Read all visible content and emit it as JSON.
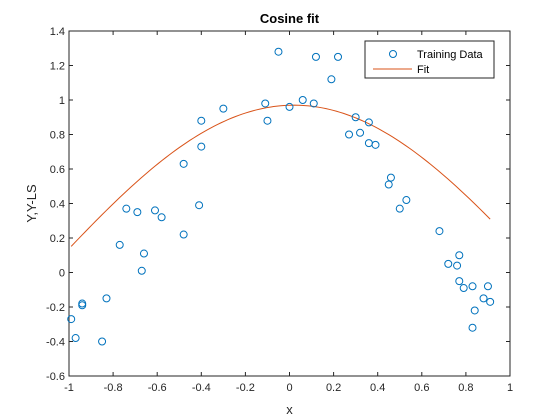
{
  "chart_data": {
    "type": "scatter",
    "title": "Cosine fit",
    "xlabel": "x",
    "ylabel": "Y,Y-LS",
    "xlim": [
      -1,
      1
    ],
    "ylim": [
      -0.6,
      1.4
    ],
    "xticks": [
      -1,
      -0.8,
      -0.6,
      -0.4,
      -0.2,
      0,
      0.2,
      0.4,
      0.6,
      0.8,
      1
    ],
    "xtick_labels": [
      "-1",
      "-0.8",
      "-0.6",
      "-0.4",
      "-0.2",
      "0",
      "0.2",
      "0.4",
      "0.6",
      "0.8",
      "1"
    ],
    "yticks": [
      -0.6,
      -0.4,
      -0.2,
      0,
      0.2,
      0.4,
      0.6,
      0.8,
      1,
      1.2,
      1.4
    ],
    "ytick_labels": [
      "-0.6",
      "-0.4",
      "-0.2",
      "0",
      "0.2",
      "0.4",
      "0.6",
      "0.8",
      "1",
      "1.2",
      "1.4"
    ],
    "grid": false,
    "legend_position": "top-right",
    "series": [
      {
        "name": "Training Data",
        "kind": "markers",
        "marker": "open-circle",
        "color": "#0072BD",
        "points": [
          [
            -0.99,
            -0.27
          ],
          [
            -0.97,
            -0.38
          ],
          [
            -0.94,
            -0.18
          ],
          [
            -0.94,
            -0.19
          ],
          [
            -0.85,
            -0.4
          ],
          [
            -0.83,
            -0.15
          ],
          [
            -0.77,
            0.16
          ],
          [
            -0.74,
            0.37
          ],
          [
            -0.69,
            0.35
          ],
          [
            -0.67,
            0.01
          ],
          [
            -0.66,
            0.11
          ],
          [
            -0.61,
            0.36
          ],
          [
            -0.58,
            0.32
          ],
          [
            -0.48,
            0.63
          ],
          [
            -0.48,
            0.22
          ],
          [
            -0.41,
            0.39
          ],
          [
            -0.4,
            0.73
          ],
          [
            -0.4,
            0.88
          ],
          [
            -0.3,
            0.95
          ],
          [
            -0.11,
            0.98
          ],
          [
            -0.1,
            0.88
          ],
          [
            -0.05,
            1.28
          ],
          [
            0.0,
            0.96
          ],
          [
            0.06,
            1.0
          ],
          [
            0.11,
            0.98
          ],
          [
            0.12,
            1.25
          ],
          [
            0.19,
            1.12
          ],
          [
            0.22,
            1.25
          ],
          [
            0.27,
            0.8
          ],
          [
            0.3,
            0.9
          ],
          [
            0.32,
            0.81
          ],
          [
            0.36,
            0.87
          ],
          [
            0.36,
            0.75
          ],
          [
            0.39,
            0.74
          ],
          [
            0.45,
            0.51
          ],
          [
            0.46,
            0.55
          ],
          [
            0.5,
            0.37
          ],
          [
            0.53,
            0.42
          ],
          [
            0.68,
            0.24
          ],
          [
            0.72,
            0.05
          ],
          [
            0.76,
            0.04
          ],
          [
            0.77,
            0.1
          ],
          [
            0.77,
            -0.05
          ],
          [
            0.79,
            -0.09
          ],
          [
            0.83,
            -0.08
          ],
          [
            0.83,
            -0.32
          ],
          [
            0.84,
            -0.22
          ],
          [
            0.88,
            -0.15
          ],
          [
            0.9,
            -0.08
          ],
          [
            0.91,
            -0.17
          ]
        ]
      },
      {
        "name": "Fit",
        "kind": "line",
        "color": "#D95319",
        "function": "0.97*cos(1.4*(x-0.02))",
        "x_range": [
          -0.99,
          0.91
        ]
      }
    ]
  }
}
